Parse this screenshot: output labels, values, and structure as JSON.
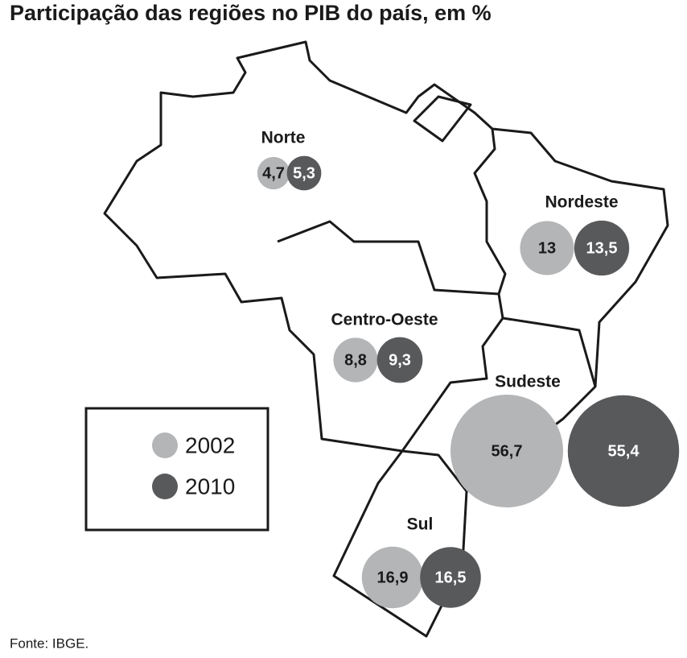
{
  "chart_data": {
    "type": "bubble-map",
    "title": "Participação das regiões no PIB do país, em %",
    "source": "Fonte: IBGE.",
    "categories": [
      "Norte",
      "Nordeste",
      "Centro-Oeste",
      "Sudeste",
      "Sul"
    ],
    "series": [
      {
        "name": "2002",
        "color": "#b3b5b7",
        "values": [
          4.7,
          13,
          8.8,
          56.7,
          16.9
        ],
        "value_labels": [
          "4,7",
          "13",
          "8,8",
          "56,7",
          "16,9"
        ]
      },
      {
        "name": "2010",
        "color": "#58595b",
        "values": [
          5.3,
          13.5,
          9.3,
          55.4,
          16.5
        ],
        "value_labels": [
          "5,3",
          "13,5",
          "9,3",
          "55,4",
          "16,5"
        ]
      }
    ]
  }
}
